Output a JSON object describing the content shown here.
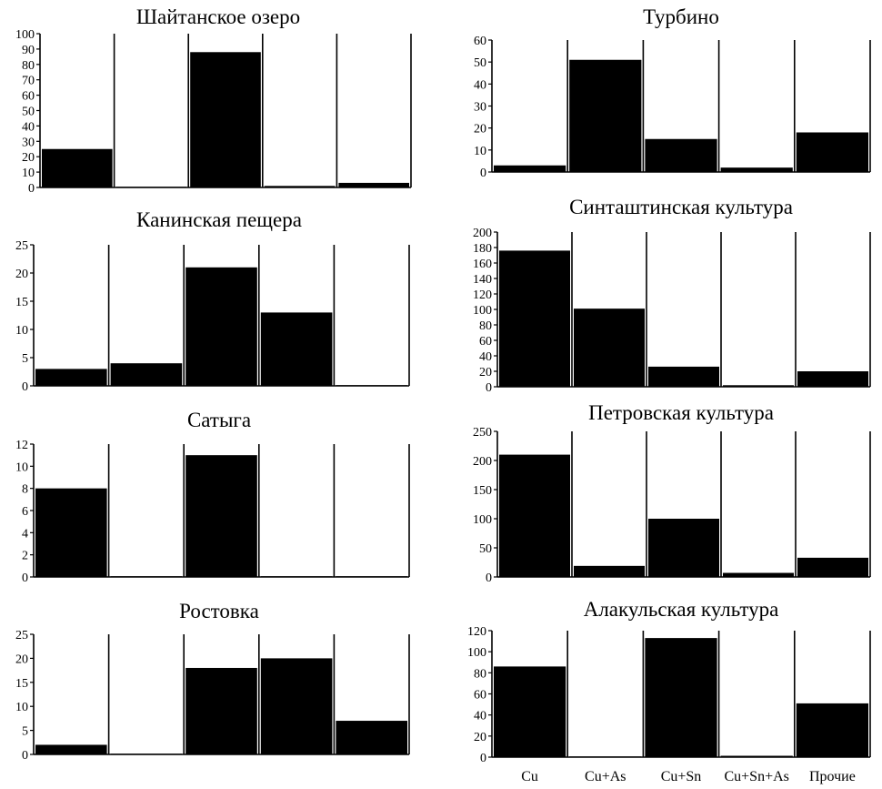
{
  "chart_data": [
    {
      "type": "bar",
      "title": "Шайтанское озеро",
      "categories": [
        "Cu",
        "Cu+As",
        "Cu+Sn",
        "Cu+Sn+As",
        "Прочие"
      ],
      "values": [
        25,
        0,
        88,
        1,
        3
      ],
      "ylim": [
        0,
        100
      ],
      "yticks": [
        "0",
        "10",
        "20",
        "30",
        "40",
        "50",
        "60",
        "70",
        "80",
        "90",
        "100"
      ],
      "xlabel": "",
      "ylabel": ""
    },
    {
      "type": "bar",
      "title": "Турбино",
      "categories": [
        "Cu",
        "Cu+As",
        "Cu+Sn",
        "Cu+Sn+As",
        "Прочие"
      ],
      "values": [
        3,
        51,
        15,
        2,
        18
      ],
      "ylim": [
        0,
        60
      ],
      "yticks": [
        "0",
        "10",
        "20",
        "30",
        "40",
        "50",
        "60"
      ],
      "xlabel": "",
      "ylabel": ""
    },
    {
      "type": "bar",
      "title": "Канинская пещера",
      "categories": [
        "Cu",
        "Cu+As",
        "Cu+Sn",
        "Cu+Sn+As",
        "Прочие"
      ],
      "values": [
        3,
        4,
        21,
        13,
        0
      ],
      "ylim": [
        0,
        25
      ],
      "yticks": [
        "0",
        "5",
        "10",
        "15",
        "20",
        "25"
      ],
      "xlabel": "",
      "ylabel": ""
    },
    {
      "type": "bar",
      "title": "Синташтинская культура",
      "categories": [
        "Cu",
        "Cu+As",
        "Cu+Sn",
        "Cu+Sn+As",
        "Прочие"
      ],
      "values": [
        176,
        101,
        26,
        2,
        20
      ],
      "ylim": [
        0,
        200
      ],
      "yticks": [
        "0",
        "20",
        "40",
        "60",
        "80",
        "100",
        "120",
        "140",
        "160",
        "180",
        "200"
      ],
      "xlabel": "",
      "ylabel": ""
    },
    {
      "type": "bar",
      "title": "Сатыга",
      "categories": [
        "Cu",
        "Cu+As",
        "Cu+Sn",
        "Cu+Sn+As",
        "Прочие"
      ],
      "values": [
        8,
        0,
        11,
        0,
        0
      ],
      "ylim": [
        0,
        12
      ],
      "yticks": [
        "0",
        "2",
        "4",
        "6",
        "8",
        "10",
        "12"
      ],
      "xlabel": "",
      "ylabel": ""
    },
    {
      "type": "bar",
      "title": "Петровская культура",
      "categories": [
        "Cu",
        "Cu+As",
        "Cu+Sn",
        "Cu+Sn+As",
        "Прочие"
      ],
      "values": [
        210,
        19,
        100,
        7,
        33
      ],
      "ylim": [
        0,
        250
      ],
      "yticks": [
        "0",
        "50",
        "100",
        "150",
        "200",
        "250"
      ],
      "xlabel": "",
      "ylabel": ""
    },
    {
      "type": "bar",
      "title": "Ростовка",
      "categories": [
        "Cu",
        "Cu+As",
        "Cu+Sn",
        "Cu+Sn+As",
        "Прочие"
      ],
      "values": [
        2,
        0,
        18,
        20,
        7
      ],
      "ylim": [
        0,
        25
      ],
      "yticks": [
        "0",
        "5",
        "10",
        "15",
        "20",
        "25"
      ],
      "xlabel": "",
      "ylabel": ""
    },
    {
      "type": "bar",
      "title": "Алакульская культура",
      "categories": [
        "Cu",
        "Cu+As",
        "Cu+Sn",
        "Cu+Sn+As",
        "Прочие"
      ],
      "values": [
        86,
        0,
        113,
        1,
        51
      ],
      "ylim": [
        0,
        120
      ],
      "yticks": [
        "0",
        "20",
        "40",
        "60",
        "80",
        "100",
        "120"
      ],
      "show_category_labels": true,
      "xlabel": "",
      "ylabel": ""
    }
  ]
}
